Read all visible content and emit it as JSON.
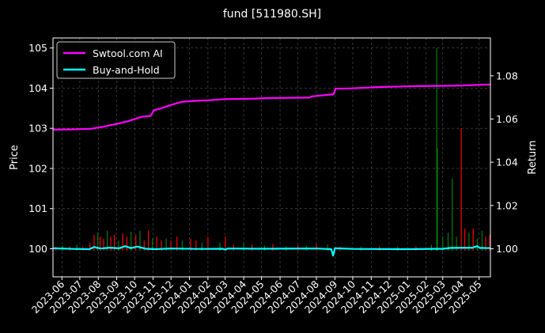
{
  "chart_data": {
    "type": "line",
    "title": "fund [511980.SH]",
    "ylabel_left": "Price",
    "ylabel_right": "Return",
    "left_ylim": [
      99.3,
      105.25
    ],
    "left_yticks": [
      "100",
      "101",
      "102",
      "103",
      "104",
      "105"
    ],
    "right_ylim": [
      0.987,
      1.0975
    ],
    "right_yticks": [
      "1.00",
      "1.02",
      "1.04",
      "1.06",
      "1.08"
    ],
    "grid": true,
    "legend_position": "top-left",
    "x_ticks": [
      "2023-06",
      "2023-07",
      "2023-08",
      "2023-09",
      "2023-10",
      "2023-11",
      "2023-12",
      "2024-01",
      "2024-02",
      "2024-03",
      "2024-04",
      "2024-05",
      "2024-06",
      "2024-07",
      "2024-08",
      "2024-09",
      "2024-10",
      "2024-11",
      "2024-12",
      "2025-01",
      "2025-02",
      "2025-03",
      "2025-04",
      "2025-05"
    ],
    "x_range": [
      "2023-05-17",
      "2025-05-20"
    ],
    "colors": {
      "background": "#000000",
      "ai_line": "#ff00ff",
      "bh_line": "#00ffff",
      "vol_up": "#ff0000",
      "vol_down": "#008000",
      "grid": "#555555"
    },
    "series": [
      {
        "name": "Swtool.com AI",
        "axis": "right",
        "points": [
          [
            "2023-05-17",
            1.0551
          ],
          [
            "2023-06-15",
            1.0552
          ],
          [
            "2023-07-20",
            1.0555
          ],
          [
            "2023-08-10",
            1.0565
          ],
          [
            "2023-09-05",
            1.058
          ],
          [
            "2023-09-20",
            1.059
          ],
          [
            "2023-10-01",
            1.06
          ],
          [
            "2023-10-12",
            1.061
          ],
          [
            "2023-10-28",
            1.0615
          ],
          [
            "2023-11-02",
            1.064
          ],
          [
            "2023-11-15",
            1.065
          ],
          [
            "2023-12-01",
            1.0665
          ],
          [
            "2023-12-20",
            1.068
          ],
          [
            "2024-01-10",
            1.0684
          ],
          [
            "2024-02-05",
            1.0687
          ],
          [
            "2024-03-01",
            1.0692
          ],
          [
            "2024-04-15",
            1.0694
          ],
          [
            "2024-05-10",
            1.0697
          ],
          [
            "2024-07-20",
            1.0699
          ],
          [
            "2024-07-25",
            1.0705
          ],
          [
            "2024-08-30",
            1.0715
          ],
          [
            "2024-09-02",
            1.074
          ],
          [
            "2024-09-30",
            1.0742
          ],
          [
            "2024-11-15",
            1.0748
          ],
          [
            "2025-01-15",
            1.0752
          ],
          [
            "2025-03-20",
            1.0754
          ],
          [
            "2025-05-20",
            1.076
          ]
        ]
      },
      {
        "name": "Buy-and-Hold",
        "axis": "right",
        "points": [
          [
            "2023-05-17",
            1.0002
          ],
          [
            "2023-06-20",
            0.9999
          ],
          [
            "2023-07-17",
            0.9998
          ],
          [
            "2023-07-25",
            1.0008
          ],
          [
            "2023-08-05",
            1.0001
          ],
          [
            "2023-08-20",
            1.0005
          ],
          [
            "2023-09-05",
            1.0002
          ],
          [
            "2023-09-15",
            1.0012
          ],
          [
            "2023-09-25",
            1.0003
          ],
          [
            "2023-10-05",
            1.001
          ],
          [
            "2023-10-20",
            1.0
          ],
          [
            "2023-11-05",
            0.9998
          ],
          [
            "2023-12-01",
            1.0001
          ],
          [
            "2024-01-15",
            0.9999
          ],
          [
            "2024-02-26",
            1.0
          ],
          [
            "2024-03-01",
            0.9996
          ],
          [
            "2024-03-05",
            1.0001
          ],
          [
            "2024-05-01",
            1.0
          ],
          [
            "2024-08-01",
            1.0001
          ],
          [
            "2024-08-26",
            0.9998
          ],
          [
            "2024-08-29",
            0.9968
          ],
          [
            "2024-09-01",
            1.0002
          ],
          [
            "2024-10-01",
            0.9999
          ],
          [
            "2025-01-01",
            0.9998
          ],
          [
            "2025-03-01",
            1.0
          ],
          [
            "2025-03-15",
            1.0004
          ],
          [
            "2025-04-20",
            1.0005
          ],
          [
            "2025-04-28",
            1.0012
          ],
          [
            "2025-05-02",
            1.0004
          ],
          [
            "2025-05-20",
            1.0003
          ]
        ]
      }
    ],
    "volume_overlay": {
      "axis": "left",
      "baseline": 99.95,
      "bars": [
        [
          "2023-05-22",
          100.05,
          "up"
        ],
        [
          "2023-06-02",
          100.08,
          "down"
        ],
        [
          "2023-06-14",
          100.06,
          "up"
        ],
        [
          "2023-06-26",
          100.1,
          "down"
        ],
        [
          "2023-07-06",
          100.05,
          "up"
        ],
        [
          "2023-07-18",
          100.15,
          "up"
        ],
        [
          "2023-07-25",
          100.35,
          "up"
        ],
        [
          "2023-07-31",
          100.4,
          "down"
        ],
        [
          "2023-08-04",
          100.3,
          "up"
        ],
        [
          "2023-08-10",
          100.25,
          "up"
        ],
        [
          "2023-08-16",
          100.45,
          "down"
        ],
        [
          "2023-08-22",
          100.3,
          "up"
        ],
        [
          "2023-08-28",
          100.35,
          "up"
        ],
        [
          "2023-09-04",
          100.2,
          "down"
        ],
        [
          "2023-09-11",
          100.38,
          "up"
        ],
        [
          "2023-09-18",
          100.3,
          "up"
        ],
        [
          "2023-09-25",
          100.42,
          "down"
        ],
        [
          "2023-10-03",
          100.35,
          "up"
        ],
        [
          "2023-10-10",
          100.45,
          "down"
        ],
        [
          "2023-10-17",
          100.2,
          "up"
        ],
        [
          "2023-10-24",
          100.45,
          "up"
        ],
        [
          "2023-10-31",
          100.25,
          "down"
        ],
        [
          "2023-11-07",
          100.3,
          "up"
        ],
        [
          "2023-11-15",
          100.2,
          "up"
        ],
        [
          "2023-11-23",
          100.25,
          "down"
        ],
        [
          "2023-12-01",
          100.2,
          "up"
        ],
        [
          "2023-12-11",
          100.3,
          "up"
        ],
        [
          "2023-12-20",
          100.2,
          "down"
        ],
        [
          "2024-01-03",
          100.25,
          "up"
        ],
        [
          "2024-01-12",
          100.2,
          "up"
        ],
        [
          "2024-01-22",
          100.15,
          "down"
        ],
        [
          "2024-02-01",
          100.3,
          "up"
        ],
        [
          "2024-02-21",
          100.15,
          "down"
        ],
        [
          "2024-03-01",
          100.3,
          "up"
        ],
        [
          "2024-03-15",
          100.1,
          "up"
        ],
        [
          "2024-04-01",
          100.15,
          "down"
        ],
        [
          "2024-04-15",
          100.1,
          "up"
        ],
        [
          "2024-05-06",
          100.08,
          "down"
        ],
        [
          "2024-05-20",
          100.12,
          "up"
        ],
        [
          "2024-06-11",
          100.06,
          "down"
        ],
        [
          "2024-07-01",
          100.1,
          "up"
        ],
        [
          "2024-07-15",
          100.08,
          "down"
        ],
        [
          "2024-08-01",
          100.12,
          "up"
        ],
        [
          "2024-08-20",
          100.1,
          "down"
        ],
        [
          "2024-09-10",
          100.05,
          "up"
        ],
        [
          "2024-10-15",
          100.05,
          "down"
        ],
        [
          "2024-11-15",
          100.06,
          "up"
        ],
        [
          "2024-12-15",
          100.05,
          "down"
        ],
        [
          "2025-01-15",
          100.06,
          "up"
        ],
        [
          "2025-02-10",
          100.1,
          "down"
        ],
        [
          "2025-02-19",
          105.0,
          "down"
        ],
        [
          "2025-02-20",
          102.5,
          "down"
        ],
        [
          "2025-03-01",
          100.3,
          "down"
        ],
        [
          "2025-03-10",
          100.4,
          "down"
        ],
        [
          "2025-03-17",
          101.75,
          "down"
        ],
        [
          "2025-03-24",
          100.3,
          "down"
        ],
        [
          "2025-04-01",
          103.0,
          "up"
        ],
        [
          "2025-04-07",
          100.5,
          "up"
        ],
        [
          "2025-04-14",
          100.4,
          "down"
        ],
        [
          "2025-04-21",
          100.5,
          "up"
        ],
        [
          "2025-04-28",
          100.25,
          "down"
        ],
        [
          "2025-05-06",
          100.45,
          "down"
        ],
        [
          "2025-05-12",
          100.3,
          "up"
        ],
        [
          "2025-05-19",
          100.35,
          "up"
        ]
      ]
    }
  }
}
